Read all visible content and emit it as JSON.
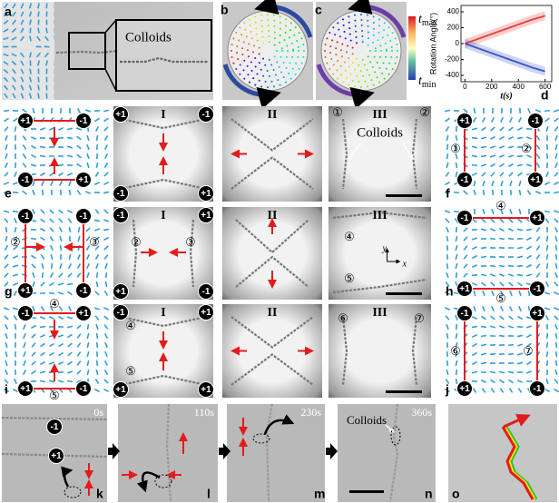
{
  "letters": {
    "a": "a",
    "b": "b",
    "c": "c",
    "d": "d",
    "e": "e",
    "f": "f",
    "g": "g",
    "h": "h",
    "i": "i",
    "j": "j",
    "k": "k",
    "l": "l",
    "m": "m",
    "n": "n",
    "o": "o"
  },
  "numerals": [
    "I",
    "II",
    "III"
  ],
  "colloids": "Colloids",
  "defects": {
    "plus": "+1",
    "minus": "-1"
  },
  "circled": [
    "①",
    "②",
    "③",
    "④",
    "⑤",
    "⑥",
    "⑦"
  ],
  "times": [
    "0s",
    "110s",
    "230s",
    "360s"
  ],
  "axes": {
    "y": "y",
    "x": "x"
  },
  "colorbar": {
    "max": {
      "base": "t",
      "sub": "max"
    },
    "min": {
      "base": "t",
      "sub": "min"
    }
  },
  "chart_data": {
    "type": "line",
    "x_label": "t(s)",
    "y_label": "Rotation Angle(°)",
    "x": [
      0,
      100,
      200,
      300,
      400,
      500,
      600
    ],
    "series": [
      {
        "color": "#e8413c",
        "values": [
          0,
          60,
          120,
          180,
          240,
          300,
          350
        ]
      },
      {
        "color": "#3a55c8",
        "values": [
          0,
          -60,
          -120,
          -180,
          -240,
          -300,
          -350
        ]
      }
    ],
    "xlim": [
      -30,
      650
    ],
    "ylim": [
      -480,
      480
    ],
    "xticks": [
      0,
      200,
      400,
      600
    ],
    "yticks": [
      -400,
      -200,
      0,
      200,
      400
    ]
  }
}
